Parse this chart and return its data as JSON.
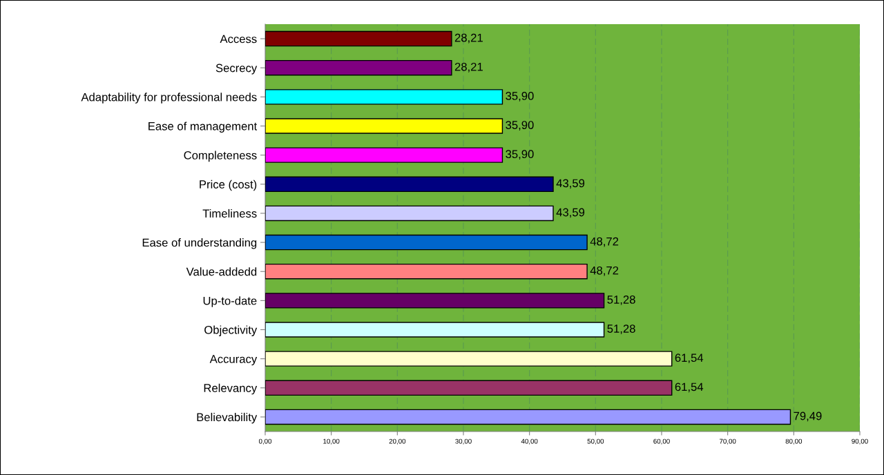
{
  "chart_data": {
    "type": "bar",
    "orientation": "horizontal",
    "categories": [
      "Access",
      "Secrecy",
      "Adaptability for professional needs",
      "Ease of management",
      "Completeness",
      "Price (cost)",
      "Timeliness",
      "Ease of understanding",
      "Value-addedd",
      "Up-to-date",
      "Objectivity",
      "Accuracy",
      "Relevancy",
      "Believability"
    ],
    "values": [
      28.21,
      28.21,
      35.9,
      35.9,
      35.9,
      43.59,
      43.59,
      48.72,
      48.72,
      51.28,
      51.28,
      61.54,
      61.54,
      79.49
    ],
    "value_labels": [
      "28,21",
      "28,21",
      "35,90",
      "35,90",
      "35,90",
      "43,59",
      "43,59",
      "48,72",
      "48,72",
      "51,28",
      "51,28",
      "61,54",
      "61,54",
      "79,49"
    ],
    "colors": [
      "#800000",
      "#800080",
      "#00ffff",
      "#ffff00",
      "#ff00ff",
      "#000080",
      "#ccccff",
      "#0066cc",
      "#ff8080",
      "#660066",
      "#ccffff",
      "#ffffcc",
      "#993366",
      "#9999ff"
    ],
    "xlim": [
      0,
      90
    ],
    "xticks": [
      {
        "value": 0,
        "label": "0,00"
      },
      {
        "value": 10,
        "label": "10,00"
      },
      {
        "value": 20,
        "label": "20,00"
      },
      {
        "value": 30,
        "label": "30,00"
      },
      {
        "value": 40,
        "label": "40,00"
      },
      {
        "value": 50,
        "label": "50,00"
      },
      {
        "value": 60,
        "label": "60,00"
      },
      {
        "value": 70,
        "label": "70,00"
      },
      {
        "value": 80,
        "label": "80,00"
      },
      {
        "value": 90,
        "label": "90,00"
      }
    ],
    "grid": "x",
    "legend": false
  }
}
